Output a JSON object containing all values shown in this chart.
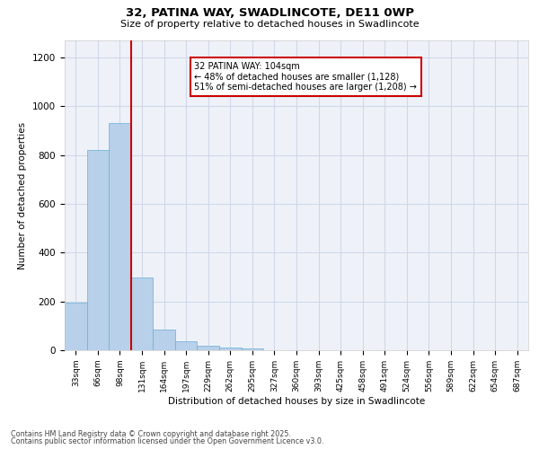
{
  "title1": "32, PATINA WAY, SWADLINCOTE, DE11 0WP",
  "title2": "Size of property relative to detached houses in Swadlincote",
  "xlabel": "Distribution of detached houses by size in Swadlincote",
  "ylabel": "Number of detached properties",
  "categories": [
    "33sqm",
    "66sqm",
    "98sqm",
    "131sqm",
    "164sqm",
    "197sqm",
    "229sqm",
    "262sqm",
    "295sqm",
    "327sqm",
    "360sqm",
    "393sqm",
    "425sqm",
    "458sqm",
    "491sqm",
    "524sqm",
    "556sqm",
    "589sqm",
    "622sqm",
    "654sqm",
    "687sqm"
  ],
  "values": [
    195,
    820,
    930,
    300,
    85,
    35,
    20,
    10,
    8,
    0,
    0,
    0,
    0,
    0,
    0,
    0,
    0,
    0,
    0,
    0,
    0
  ],
  "bar_color": "#b8d0ea",
  "bar_edge_color": "#6aaed6",
  "vline_color": "#cc0000",
  "annotation_text": "32 PATINA WAY: 104sqm\n← 48% of detached houses are smaller (1,128)\n51% of semi-detached houses are larger (1,208) →",
  "annotation_box_color": "#cc0000",
  "ylim": [
    0,
    1270
  ],
  "yticks": [
    0,
    200,
    400,
    600,
    800,
    1000,
    1200
  ],
  "grid_color": "#d0d8e8",
  "bg_color": "#eef2f8",
  "footnote1": "Contains HM Land Registry data © Crown copyright and database right 2025.",
  "footnote2": "Contains public sector information licensed under the Open Government Licence v3.0."
}
